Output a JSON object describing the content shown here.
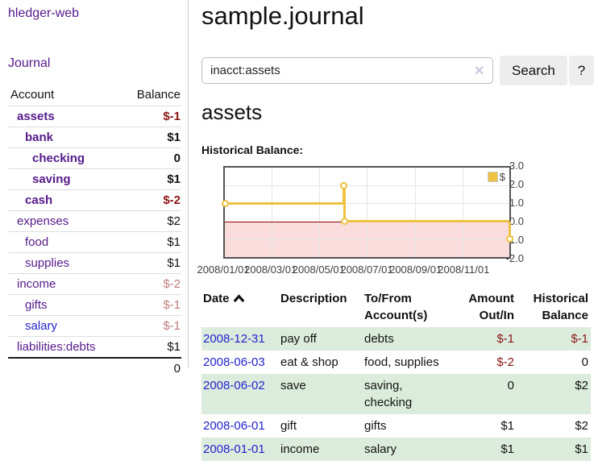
{
  "colors": {
    "link_purple": "#551a8b",
    "link_blue": "#2323cf",
    "negative": "#8b1414",
    "negative_muted": "#c07c7c",
    "row_green": "#dcecdc",
    "series_gold": "#edc240",
    "negative_region_pink": "#fbdcdc",
    "zero_line_red": "#8b0000"
  },
  "sidebar": {
    "app_title": "hledger-web",
    "nav_journal": "Journal",
    "accounts_table": {
      "header_account": "Account",
      "header_balance": "Balance",
      "rows": [
        {
          "label": "assets",
          "level": 1,
          "bold": true,
          "value": "$-1",
          "vclass": "neg",
          "link": "purple"
        },
        {
          "label": "bank",
          "level": 2,
          "bold": true,
          "value": "$1",
          "vclass": "pos",
          "link": "purple"
        },
        {
          "label": "checking",
          "level": 3,
          "bold": true,
          "value": "0",
          "vclass": "pos",
          "link": "purple"
        },
        {
          "label": "saving",
          "level": 3,
          "bold": true,
          "value": "$1",
          "vclass": "pos",
          "link": "purple"
        },
        {
          "label": "cash",
          "level": 2,
          "bold": true,
          "value": "$-2",
          "vclass": "neg",
          "link": "purple"
        },
        {
          "label": "expenses",
          "level": 1,
          "bold": false,
          "value": "$2",
          "vclass": "pos",
          "link": "purple"
        },
        {
          "label": "food",
          "level": 2,
          "bold": false,
          "value": "$1",
          "vclass": "pos",
          "link": "purple"
        },
        {
          "label": "supplies",
          "level": 2,
          "bold": false,
          "value": "$1",
          "vclass": "pos",
          "link": "purple"
        },
        {
          "label": "income",
          "level": 1,
          "bold": false,
          "value": "$-2",
          "vclass": "negmuted",
          "link": "purple"
        },
        {
          "label": "gifts",
          "level": 2,
          "bold": false,
          "value": "$-1",
          "vclass": "negmuted",
          "link": "purple"
        },
        {
          "label": "salary",
          "level": 2,
          "bold": false,
          "value": "$-1",
          "vclass": "negmuted",
          "link": "blue"
        },
        {
          "label": "liabilities:debts",
          "level": 1,
          "bold": false,
          "value": "$1",
          "vclass": "pos",
          "link": "purple"
        }
      ],
      "total": "0"
    }
  },
  "header": {
    "title": "sample.journal"
  },
  "search": {
    "value": "inacct:assets",
    "clear_icon": "✕",
    "button_label": "Search",
    "help_label": "?"
  },
  "account_page": {
    "title": "assets",
    "chart_label": "Historical Balance:"
  },
  "chart_data": {
    "type": "line",
    "step": true,
    "title": "Historical Balance:",
    "legend": {
      "label": "$",
      "position": "top-right"
    },
    "ylim": [
      -2,
      3
    ],
    "y_ticks": [
      {
        "value": 3,
        "label": "3.0"
      },
      {
        "value": 2,
        "label": "2.0"
      },
      {
        "value": 1,
        "label": "1.0"
      },
      {
        "value": 0,
        "label": "0.0"
      },
      {
        "value": -1,
        "label": "-1.0"
      },
      {
        "value": -2,
        "label": "-2.0"
      }
    ],
    "x_range_days": [
      0,
      365
    ],
    "x_ticks": [
      {
        "day": 0,
        "label": "2008/01/01"
      },
      {
        "day": 60,
        "label": "2008/03/01"
      },
      {
        "day": 121,
        "label": "2008/05/01"
      },
      {
        "day": 182,
        "label": "2008/07/01"
      },
      {
        "day": 244,
        "label": "2008/09/01"
      },
      {
        "day": 305,
        "label": "2008/11/01"
      }
    ],
    "series": [
      {
        "name": "$",
        "color": "#edc240",
        "points": [
          {
            "date": "2008/01/01",
            "day": 0,
            "value": 1
          },
          {
            "date": "2008/06/01",
            "day": 152,
            "value": 2
          },
          {
            "date": "2008/06/02",
            "day": 153,
            "value": 2
          },
          {
            "date": "2008/06/03",
            "day": 154,
            "value": 0
          },
          {
            "date": "2008/12/31",
            "day": 365,
            "value": -1
          }
        ]
      }
    ],
    "grid": true,
    "zero_line": true,
    "negative_region_shaded": true
  },
  "register": {
    "headers": [
      {
        "label": "Date",
        "align": "left",
        "sort": "ascending"
      },
      {
        "label": "Description",
        "align": "left"
      },
      {
        "label": "To/From\nAccount(s)",
        "align": "left"
      },
      {
        "label": "Amount\nOut/In",
        "align": "right"
      },
      {
        "label": "Historical\nBalance",
        "align": "right"
      }
    ],
    "rows": [
      {
        "date": "2008-12-31",
        "description": "pay off",
        "accounts": "debts",
        "amount": "$-1",
        "amount_negative": true,
        "balance": "$-1",
        "balance_negative": true
      },
      {
        "date": "2008-06-03",
        "description": "eat & shop",
        "accounts": "food, supplies",
        "amount": "$-2",
        "amount_negative": true,
        "balance": "0",
        "balance_negative": false
      },
      {
        "date": "2008-06-02",
        "description": "save",
        "accounts": "saving, checking",
        "amount": "0",
        "amount_negative": false,
        "balance": "$2",
        "balance_negative": false
      },
      {
        "date": "2008-06-01",
        "description": "gift",
        "accounts": "gifts",
        "amount": "$1",
        "amount_negative": false,
        "balance": "$2",
        "balance_negative": false
      },
      {
        "date": "2008-01-01",
        "description": "income",
        "accounts": "salary",
        "amount": "$1",
        "amount_negative": false,
        "balance": "$1",
        "balance_negative": false
      }
    ]
  }
}
